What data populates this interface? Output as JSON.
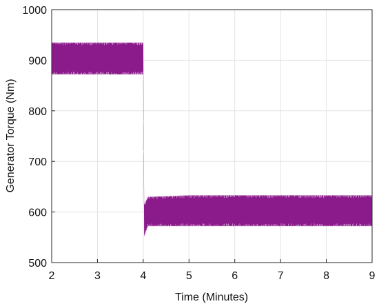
{
  "chart_data": {
    "type": "line",
    "title": "",
    "xlabel": "Time (Minutes)",
    "ylabel": "Generator Torque (Nm)",
    "xlim": [
      2,
      9
    ],
    "ylim": [
      500,
      1000
    ],
    "xticks": [
      "2",
      "3",
      "4",
      "5",
      "6",
      "7",
      "8",
      "9"
    ],
    "yticks": [
      "500",
      "600",
      "700",
      "800",
      "900",
      "1000"
    ],
    "grid": true,
    "legend": "none",
    "series": [
      {
        "color": "#8b1a8b",
        "style": "high-frequency oscillation band",
        "x": [
          2.0,
          4.0,
          4.0,
          4.02,
          4.1,
          5.0,
          6.0,
          7.0,
          8.0,
          9.0
        ],
        "upper": [
          935,
          935,
          935,
          615,
          630,
          633,
          633,
          633,
          633,
          633
        ],
        "lower": [
          872,
          872,
          872,
          552,
          572,
          572,
          572,
          572,
          572,
          572
        ]
      }
    ]
  }
}
